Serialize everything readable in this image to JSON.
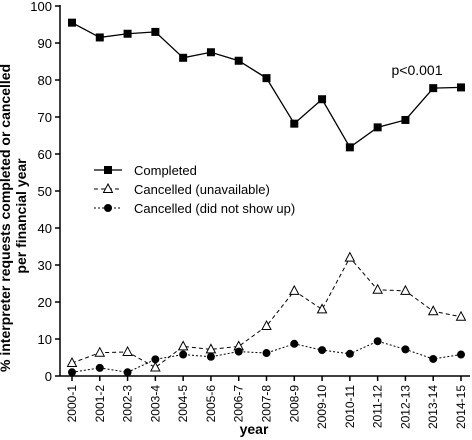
{
  "chart_data": {
    "type": "line",
    "title": "",
    "xlabel": "year",
    "ylabel": "% interpreter requests completed or cancelled per financial year",
    "ylim": [
      0,
      100
    ],
    "yticks": [
      0,
      10,
      20,
      30,
      40,
      50,
      60,
      70,
      80,
      90,
      100
    ],
    "categories": [
      "2000-1",
      "2001-2",
      "2002-3",
      "2003-4",
      "2004-5",
      "2005-6",
      "2006-7",
      "2007-8",
      "2008-9",
      "2009-10",
      "2010-11",
      "2011-12",
      "2012-13",
      "2013-14",
      "2014-15"
    ],
    "series": [
      {
        "name": "Completed",
        "marker": "square-filled",
        "line": "solid",
        "values": [
          95.5,
          91.5,
          92.5,
          93.0,
          86.0,
          87.5,
          85.2,
          80.5,
          68.2,
          74.8,
          61.8,
          67.2,
          69.2,
          77.8,
          78.0
        ]
      },
      {
        "name": "Cancelled (unavailable)",
        "marker": "triangle-open",
        "line": "dashed",
        "values": [
          3.5,
          6.3,
          6.5,
          2.3,
          8.0,
          7.2,
          8.0,
          13.5,
          23.0,
          18.0,
          32.0,
          23.3,
          23.0,
          17.5,
          16.0
        ]
      },
      {
        "name": "Cancelled (did not show up)",
        "marker": "circle-filled",
        "line": "dotted",
        "values": [
          1.0,
          2.2,
          1.0,
          4.5,
          5.8,
          5.2,
          6.6,
          6.2,
          8.7,
          7.0,
          6.0,
          9.4,
          7.2,
          4.6,
          5.8
        ]
      }
    ],
    "annotations": [
      {
        "text": "p<0.001",
        "near_category": "2014-15"
      }
    ],
    "legend_position": "middle-left",
    "grid": false
  }
}
